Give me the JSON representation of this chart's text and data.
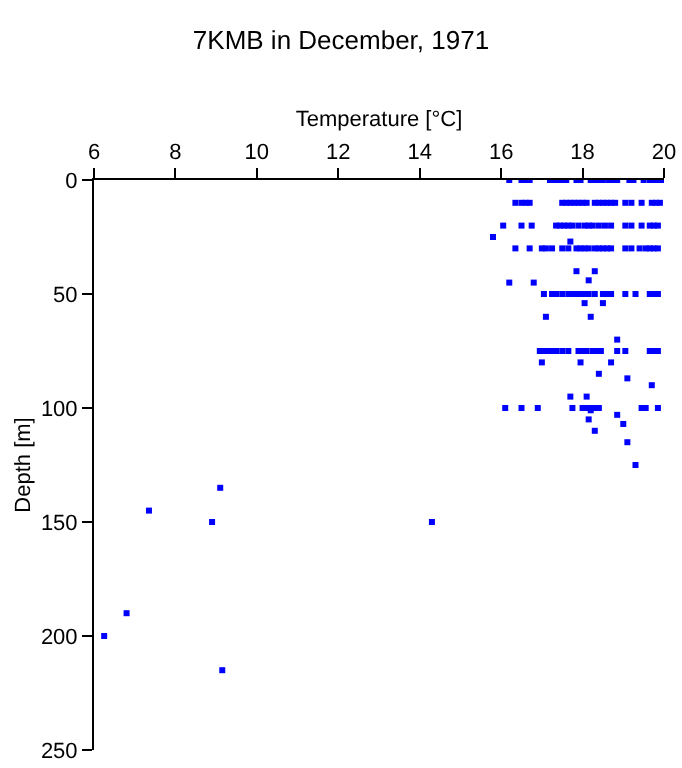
{
  "chart_data": {
    "type": "scatter",
    "title": "7KMB in December, 1971",
    "xlabel": "Temperature [°C]",
    "ylabel": "Depth [m]",
    "xlim": [
      6,
      20
    ],
    "xticks": [
      6,
      8,
      10,
      12,
      14,
      16,
      18,
      20
    ],
    "ylim": [
      250,
      0
    ],
    "yticks": [
      0,
      50,
      100,
      150,
      200,
      250
    ],
    "grid": false,
    "marker": "square",
    "series": [
      {
        "color": "#0000ff",
        "x": [
          16.2,
          16.5,
          16.6,
          16.7,
          17.2,
          17.3,
          17.4,
          17.5,
          17.6,
          17.85,
          17.95,
          18.2,
          18.3,
          18.4,
          18.5,
          18.65,
          18.75,
          18.85,
          19.15,
          19.25,
          19.5,
          19.65,
          19.75,
          19.85,
          19.95,
          16.35,
          16.5,
          16.6,
          16.7,
          17.5,
          17.6,
          17.7,
          17.8,
          17.9,
          18.0,
          18.1,
          18.3,
          18.4,
          18.5,
          18.6,
          18.7,
          18.8,
          19.05,
          19.2,
          19.45,
          19.7,
          19.8,
          19.9,
          16.05,
          16.5,
          16.75,
          17.35,
          17.45,
          17.55,
          17.65,
          17.75,
          17.9,
          18.05,
          18.15,
          18.25,
          18.4,
          18.55,
          18.7,
          19.05,
          19.2,
          19.45,
          19.65,
          19.75,
          19.85,
          15.8,
          17.7,
          16.35,
          16.7,
          17.0,
          17.1,
          17.25,
          17.5,
          17.65,
          17.85,
          17.95,
          18.05,
          18.15,
          18.3,
          18.4,
          18.5,
          18.6,
          18.7,
          19.05,
          19.2,
          19.4,
          19.55,
          19.65,
          19.75,
          19.85,
          17.85,
          18.3,
          18.15,
          16.2,
          16.8,
          17.05,
          17.25,
          17.35,
          17.5,
          17.65,
          17.75,
          17.85,
          17.95,
          18.05,
          18.15,
          18.3,
          18.5,
          18.6,
          18.7,
          19.05,
          19.3,
          19.65,
          19.75,
          19.85,
          18.05,
          18.5,
          17.1,
          18.2,
          18.85,
          16.95,
          17.05,
          17.15,
          17.25,
          17.35,
          17.5,
          17.65,
          17.9,
          18.0,
          18.1,
          18.25,
          18.35,
          18.45,
          18.85,
          19.05,
          19.65,
          19.75,
          19.85,
          17.0,
          17.95,
          18.7,
          18.4,
          19.1,
          19.7,
          17.7,
          18.1,
          16.1,
          16.5,
          16.9,
          17.75,
          18.0,
          18.1,
          18.2,
          18.3,
          18.4,
          19.45,
          19.55,
          19.85,
          18.2,
          18.85,
          18.15,
          19.0,
          18.3,
          19.1,
          19.3,
          9.1,
          7.35,
          8.9,
          14.3,
          6.8,
          6.25,
          9.15
        ],
        "values": [
          0,
          0,
          0,
          0,
          0,
          0,
          0,
          0,
          0,
          0,
          0,
          0,
          0,
          0,
          0,
          0,
          0,
          0,
          0,
          0,
          0,
          0,
          0,
          0,
          0,
          10,
          10,
          10,
          10,
          10,
          10,
          10,
          10,
          10,
          10,
          10,
          10,
          10,
          10,
          10,
          10,
          10,
          10,
          10,
          10,
          10,
          10,
          10,
          20,
          20,
          20,
          20,
          20,
          20,
          20,
          20,
          20,
          20,
          20,
          20,
          20,
          20,
          20,
          20,
          20,
          20,
          20,
          20,
          20,
          25,
          27,
          30,
          30,
          30,
          30,
          30,
          30,
          30,
          30,
          30,
          30,
          30,
          30,
          30,
          30,
          30,
          30,
          30,
          30,
          30,
          30,
          30,
          30,
          30,
          40,
          40,
          44,
          45,
          45,
          50,
          50,
          50,
          50,
          50,
          50,
          50,
          50,
          50,
          50,
          50,
          50,
          50,
          50,
          50,
          50,
          50,
          50,
          50,
          54,
          54,
          60,
          60,
          70,
          75,
          75,
          75,
          75,
          75,
          75,
          75,
          75,
          75,
          75,
          75,
          75,
          75,
          75,
          75,
          75,
          75,
          75,
          80,
          80,
          80,
          85,
          87,
          90,
          95,
          95,
          100,
          100,
          100,
          100,
          100,
          100,
          100,
          100,
          100,
          100,
          100,
          100,
          101,
          103,
          105,
          107,
          110,
          115,
          125,
          135,
          145,
          150,
          150,
          190,
          200,
          215
        ]
      }
    ]
  }
}
